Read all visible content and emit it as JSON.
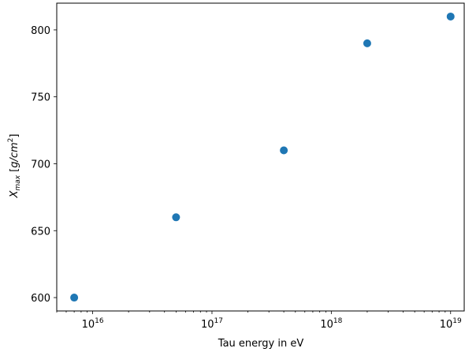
{
  "chart_data": {
    "type": "scatter",
    "xscale": "log",
    "xlabel": "Tau energy in eV",
    "ylabel_main": "X",
    "ylabel_sub": "max",
    "ylabel_unit_pre": " [",
    "ylabel_unit": "g/cm",
    "ylabel_sup": "2",
    "ylabel_unit_post": "]",
    "xlim": [
      5000000000000000.0,
      1.3e+19
    ],
    "ylim": [
      590,
      820
    ],
    "x_ticks": [
      {
        "value": 1e+16,
        "base": "10",
        "exp": "16"
      },
      {
        "value": 1e+17,
        "base": "10",
        "exp": "17"
      },
      {
        "value": 1e+18,
        "base": "10",
        "exp": "18"
      },
      {
        "value": 1e+19,
        "base": "10",
        "exp": "19"
      }
    ],
    "y_ticks": [
      {
        "value": 600,
        "label": "600"
      },
      {
        "value": 650,
        "label": "650"
      },
      {
        "value": 700,
        "label": "700"
      },
      {
        "value": 750,
        "label": "750"
      },
      {
        "value": 800,
        "label": "800"
      }
    ],
    "points": [
      {
        "x": 7000000000000000.0,
        "y": 600
      },
      {
        "x": 5e+16,
        "y": 660
      },
      {
        "x": 4e+17,
        "y": 710
      },
      {
        "x": 2e+18,
        "y": 790
      },
      {
        "x": 1e+19,
        "y": 810
      }
    ],
    "marker_color": "#1f77b4",
    "grid": false
  }
}
